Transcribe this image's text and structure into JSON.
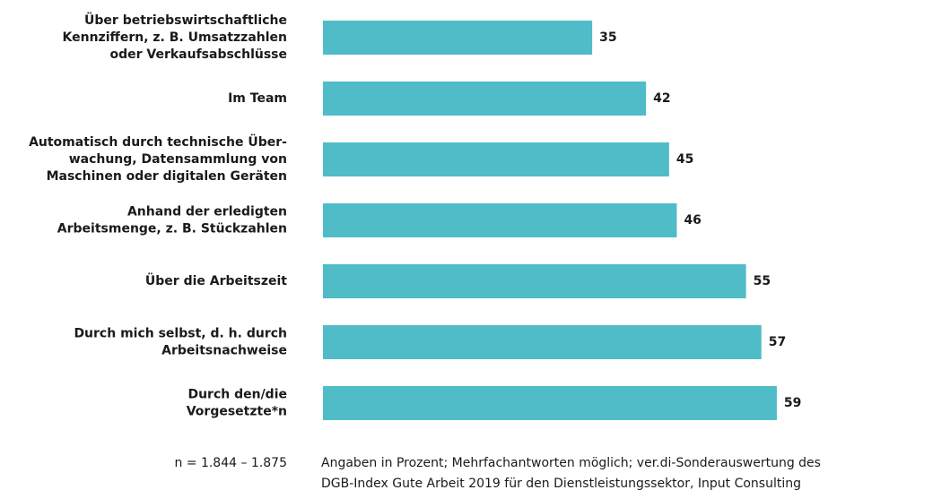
{
  "chart_data": {
    "type": "bar",
    "categories": [
      "Über betriebswirtschaftliche\nKennziffern, z. B. Umsatzzahlen\noder Verkaufsabschlüsse",
      "Im Team",
      "Automatisch durch technische Über-\nwachung, Datensammlung von\nMaschinen oder digitalen Geräten",
      "Anhand der erledigten\nArbeitsmenge, z. B. Stückzahlen",
      "Über die Arbeitszeit",
      "Durch mich selbst, d. h. durch\nArbeitsnachweise",
      "Durch den/die\nVorgesetzte*n"
    ],
    "values": [
      35,
      42,
      45,
      46,
      55,
      57,
      59
    ],
    "color": "#4fbcc8",
    "sample_note": "n = 1.844 – 1.875",
    "note": [
      "Angaben in Prozent; Mehrfachantworten möglich; ver.di-Sonderauswertung des",
      "DGB-Index Gute Arbeit 2019 für den Dienstleistungssektor, Input Consulting"
    ]
  }
}
